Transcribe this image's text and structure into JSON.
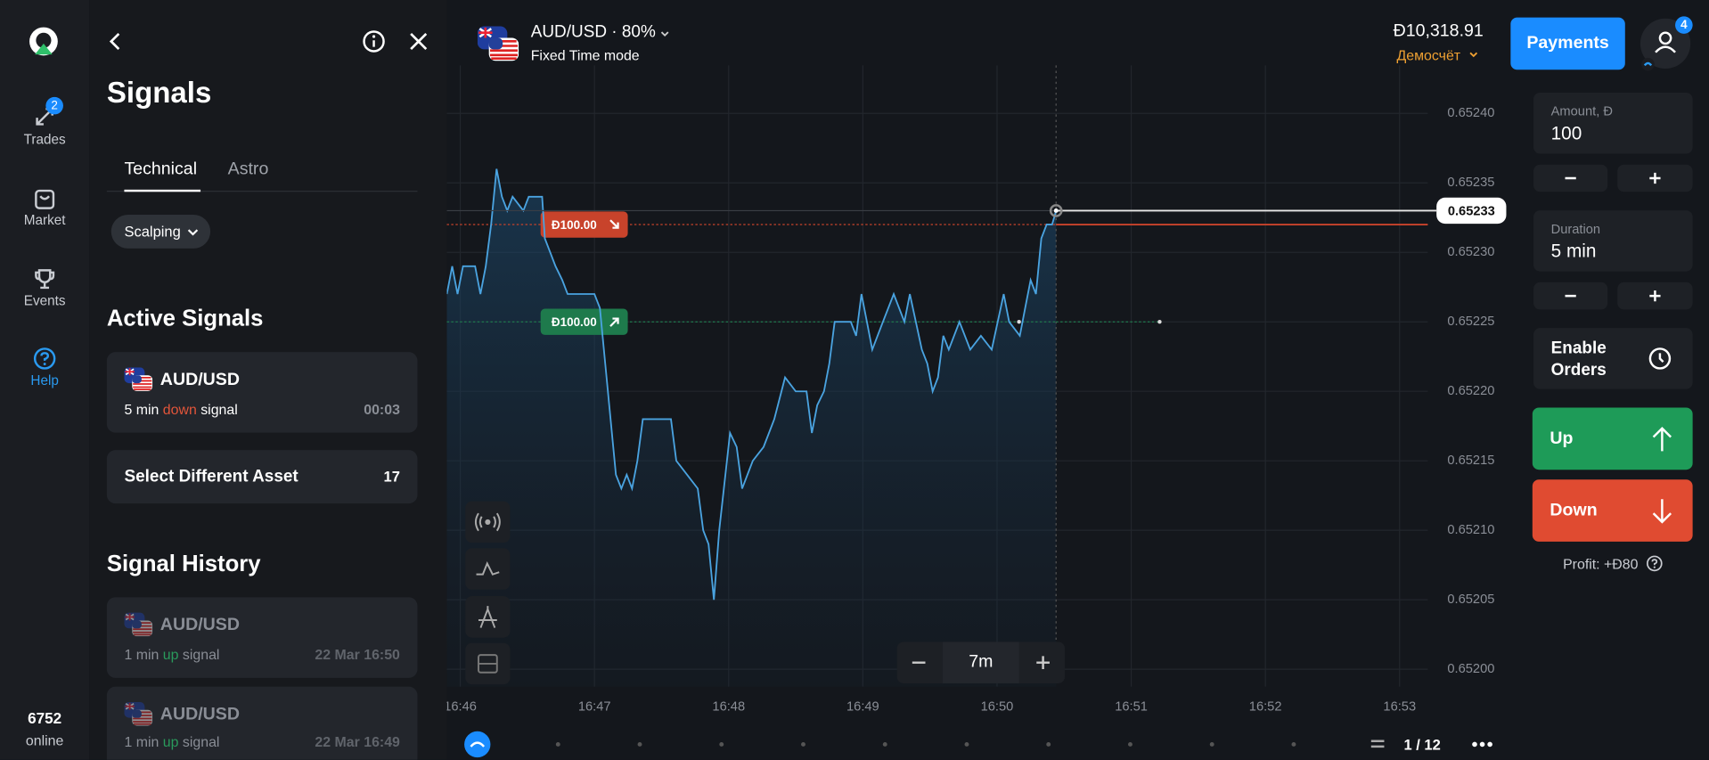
{
  "sidebar": {
    "nav": [
      {
        "label": "Trades",
        "badge": "2"
      },
      {
        "label": "Market"
      },
      {
        "label": "Events"
      },
      {
        "label": "Help"
      }
    ],
    "online_count": "6752",
    "online_label": "online"
  },
  "signals_panel": {
    "title": "Signals",
    "tabs": [
      "Technical",
      "Astro"
    ],
    "filter": "Scalping",
    "active_title": "Active Signals",
    "active": [
      {
        "asset": "AUD/USD",
        "duration": "5 min",
        "direction": "down",
        "suffix": "signal",
        "time": "00:03"
      }
    ],
    "select_label": "Select Different Asset",
    "select_count": "17",
    "history_title": "Signal History",
    "history": [
      {
        "asset": "AUD/USD",
        "duration": "1 min",
        "direction": "up",
        "suffix": "signal",
        "time": "22 Mar 16:50"
      },
      {
        "asset": "AUD/USD",
        "duration": "1 min",
        "direction": "up",
        "suffix": "signal",
        "time": "22 Mar 16:49"
      }
    ]
  },
  "header": {
    "asset": "AUD/USD · 80%",
    "mode": "Fixed Time mode",
    "balance": "Đ10,318.91",
    "account": "Демосчёт",
    "payments": "Payments",
    "notifications": "4"
  },
  "trade_panel": {
    "amount_label": "Amount, Đ",
    "amount": "100",
    "duration_label": "Duration",
    "duration": "5 min",
    "enable_orders": "Enable Orders",
    "up": "Up",
    "down": "Down",
    "profit": "Profit: +Đ80"
  },
  "chart_controls": {
    "zoom": "7m",
    "page": "1 / 12"
  },
  "chart_data": {
    "type": "line",
    "color": "#4aa3e0",
    "grid": true,
    "x": [
      1005.9,
      1005.94,
      1005.98,
      1006.02,
      1006.11,
      1006.15,
      1006.19,
      1006.23,
      1006.27,
      1006.31,
      1006.35,
      1006.39,
      1006.47,
      1006.51,
      1006.61,
      1006.63,
      1006.67,
      1006.71,
      1006.76,
      1006.8,
      1006.84,
      1006.88,
      1007.0,
      1007.04,
      1007.08,
      1007.12,
      1007.16,
      1007.2,
      1007.24,
      1007.28,
      1007.32,
      1007.36,
      1007.41,
      1007.57,
      1007.61,
      1007.69,
      1007.77,
      1007.81,
      1007.85,
      1007.89,
      1007.93,
      1008.01,
      1008.06,
      1008.1,
      1008.18,
      1008.26,
      1008.34,
      1008.42,
      1008.5,
      1008.58,
      1008.62,
      1008.66,
      1008.71,
      1008.75,
      1008.79,
      1008.91,
      1008.95,
      1008.99,
      1009.03,
      1009.07,
      1009.15,
      1009.23,
      1009.31,
      1009.35,
      1009.44,
      1009.48,
      1009.52,
      1009.56,
      1009.6,
      1009.64,
      1009.72,
      1009.8,
      1009.88,
      1009.96,
      1010.05,
      1010.09,
      1010.17,
      1010.21,
      1010.25,
      1010.29,
      1010.33,
      1010.37,
      1010.41,
      1010.44
    ],
    "values": [
      0.65227,
      0.65229,
      0.65227,
      0.65229,
      0.65229,
      0.65227,
      0.65229,
      0.65232,
      0.65236,
      0.65234,
      0.65233,
      0.65234,
      0.65233,
      0.65234,
      0.65234,
      0.65231,
      0.6523,
      0.65229,
      0.65228,
      0.65227,
      0.65227,
      0.65227,
      0.65227,
      0.65226,
      0.65222,
      0.65218,
      0.65214,
      0.65213,
      0.65214,
      0.65213,
      0.65215,
      0.65218,
      0.65218,
      0.65218,
      0.65215,
      0.65214,
      0.65213,
      0.6521,
      0.65209,
      0.65205,
      0.6521,
      0.65217,
      0.65216,
      0.65213,
      0.65215,
      0.65216,
      0.65218,
      0.65221,
      0.6522,
      0.6522,
      0.65217,
      0.65219,
      0.6522,
      0.65222,
      0.65225,
      0.65225,
      0.65224,
      0.65227,
      0.65225,
      0.65223,
      0.65225,
      0.65227,
      0.65225,
      0.65227,
      0.65223,
      0.65222,
      0.6522,
      0.65221,
      0.65224,
      0.65223,
      0.65225,
      0.65223,
      0.65224,
      0.65223,
      0.65227,
      0.65225,
      0.65224,
      0.65226,
      0.65228,
      0.65227,
      0.65231,
      0.65232,
      0.65232,
      0.65233
    ],
    "xlim": [
      1005.9,
      1013.21
    ],
    "ylim": [
      0.6519875,
      0.6524267
    ],
    "xticks": [
      {
        "value": 1006,
        "label": "16:46"
      },
      {
        "value": 1007,
        "label": "16:47"
      },
      {
        "value": 1008,
        "label": "16:48"
      },
      {
        "value": 1009,
        "label": "16:49"
      },
      {
        "value": 1010,
        "label": "16:50"
      },
      {
        "value": 1011,
        "label": "16:51"
      },
      {
        "value": 1012,
        "label": "16:52"
      },
      {
        "value": 1013,
        "label": "16:53"
      }
    ],
    "yticks": [
      {
        "value": 0.652,
        "label": "0.65200"
      },
      {
        "value": 0.65205,
        "label": "0.65205"
      },
      {
        "value": 0.6521,
        "label": "0.65210"
      },
      {
        "value": 0.65215,
        "label": "0.65215"
      },
      {
        "value": 0.6522,
        "label": "0.65220"
      },
      {
        "value": 0.65225,
        "label": "0.65225"
      },
      {
        "value": 0.6523,
        "label": "0.65230"
      },
      {
        "value": 0.65235,
        "label": "0.65235"
      },
      {
        "value": 0.6524,
        "label": "0.65240"
      }
    ],
    "current_price": {
      "value": 0.65233,
      "label": "0.65233"
    },
    "trades": [
      {
        "label": "Đ100.00",
        "direction": "down",
        "price": 0.65232,
        "color": "#c8432b"
      },
      {
        "label": "Đ100.00",
        "direction": "up",
        "price": 0.65225,
        "color": "#1e7a4c"
      }
    ]
  }
}
